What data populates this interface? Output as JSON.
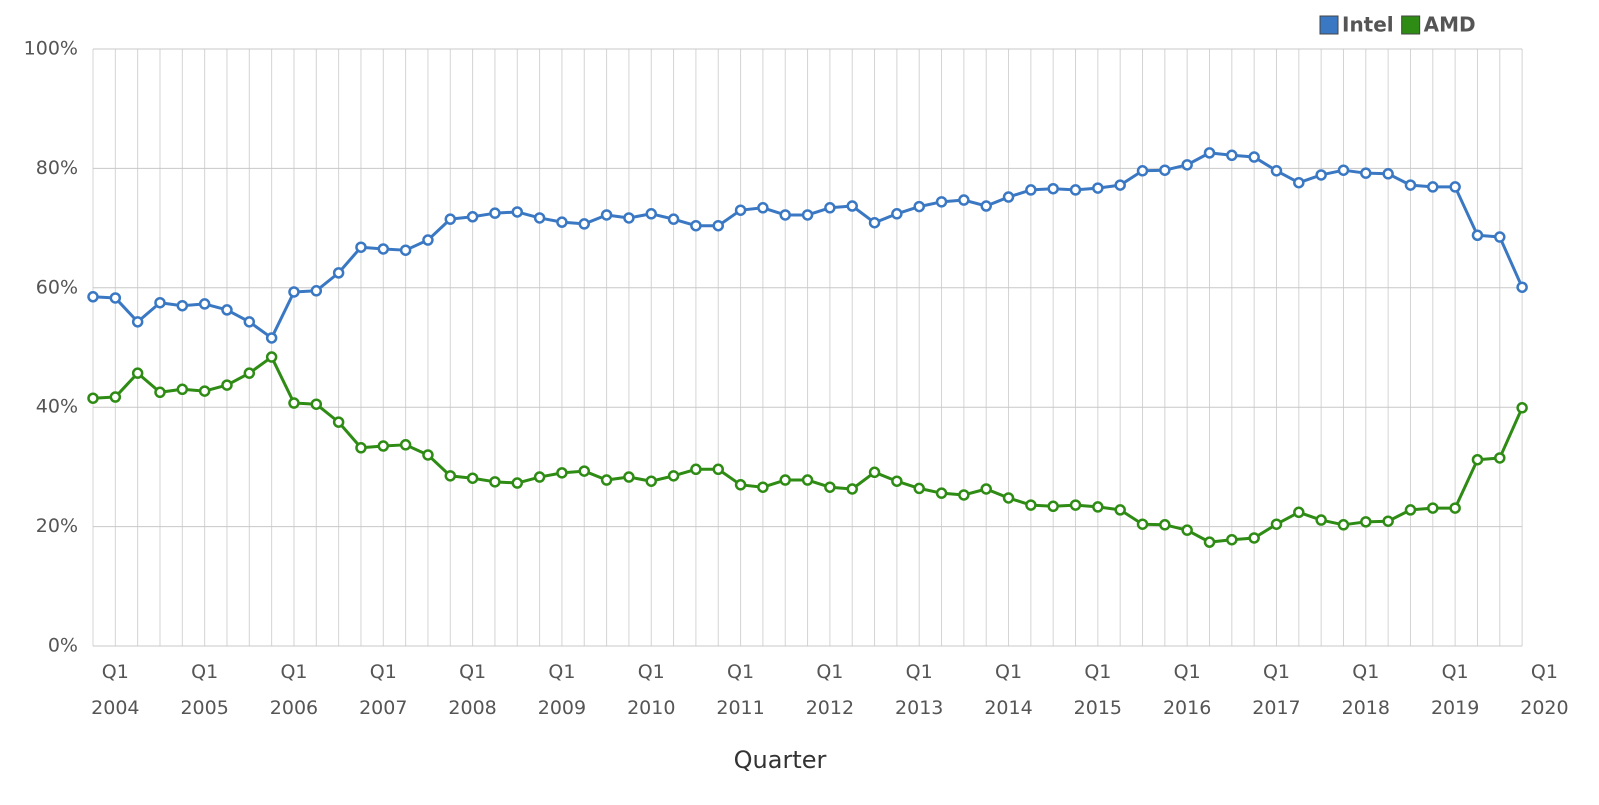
{
  "chart_data": {
    "type": "line",
    "x_title": "Quarter",
    "categories": [
      null,
      "Q1\n2004",
      null,
      null,
      null,
      "Q1\n2005",
      null,
      null,
      null,
      "Q1\n2006",
      null,
      null,
      null,
      "Q1\n2007",
      null,
      null,
      null,
      "Q1\n2008",
      null,
      null,
      null,
      "Q1\n2009",
      null,
      null,
      null,
      "Q1\n2010",
      null,
      null,
      null,
      "Q1\n2011",
      null,
      null,
      null,
      "Q1\n2012",
      null,
      null,
      null,
      "Q1\n2013",
      null,
      null,
      null,
      "Q1\n2014",
      null,
      null,
      null,
      "Q1\n2015",
      null,
      null,
      null,
      "Q1\n2016",
      null,
      null,
      null,
      "Q1\n2017",
      null,
      null,
      null,
      "Q1\n2018",
      null,
      null,
      null,
      "Q1\n2019",
      null,
      null,
      null,
      "Q1\n2020"
    ],
    "series": [
      {
        "name": "Intel",
        "color": "#3a78c3",
        "values": [
          58.5,
          58.3,
          54.3,
          57.5,
          57.0,
          57.3,
          56.3,
          54.3,
          51.6,
          59.3,
          59.5,
          62.5,
          66.8,
          66.5,
          66.3,
          68.0,
          71.5,
          71.9,
          72.5,
          72.7,
          71.7,
          71.0,
          70.7,
          72.2,
          71.7,
          72.4,
          71.5,
          70.4,
          70.4,
          73.0,
          73.4,
          72.2,
          72.2,
          73.4,
          73.7,
          70.9,
          72.4,
          73.6,
          74.4,
          74.7,
          73.7,
          75.2,
          76.4,
          76.6,
          76.4,
          76.7,
          77.2,
          79.6,
          79.7,
          80.6,
          82.6,
          82.2,
          81.9,
          79.6,
          77.6,
          78.9,
          79.7,
          79.2,
          79.1,
          77.2,
          76.9,
          76.9,
          68.8,
          68.5,
          60.1,
          null
        ]
      },
      {
        "name": "AMD",
        "color": "#2e8b14",
        "values": [
          41.5,
          41.7,
          45.7,
          42.5,
          43.0,
          42.7,
          43.7,
          45.7,
          48.4,
          40.7,
          40.5,
          37.5,
          33.2,
          33.5,
          33.7,
          32.0,
          28.5,
          28.1,
          27.5,
          27.3,
          28.3,
          29.0,
          29.3,
          27.8,
          28.3,
          27.6,
          28.5,
          29.6,
          29.6,
          27.0,
          26.6,
          27.8,
          27.8,
          26.6,
          26.3,
          29.1,
          27.6,
          26.4,
          25.6,
          25.3,
          26.3,
          24.8,
          23.6,
          23.4,
          23.6,
          23.3,
          22.8,
          20.4,
          20.3,
          19.4,
          17.4,
          17.8,
          18.1,
          20.4,
          22.4,
          21.1,
          20.3,
          20.8,
          20.9,
          22.8,
          23.1,
          23.1,
          31.2,
          31.5,
          39.9,
          null
        ]
      }
    ],
    "ylim": [
      0,
      100
    ],
    "yticks": [
      {
        "value": 0,
        "label": "0%"
      },
      {
        "value": 20,
        "label": "20%"
      },
      {
        "value": 40,
        "label": "40%"
      },
      {
        "value": 60,
        "label": "60%"
      },
      {
        "value": 80,
        "label": "80%"
      },
      {
        "value": 100,
        "label": "100%"
      }
    ],
    "grid": true,
    "legend": "top-right"
  }
}
